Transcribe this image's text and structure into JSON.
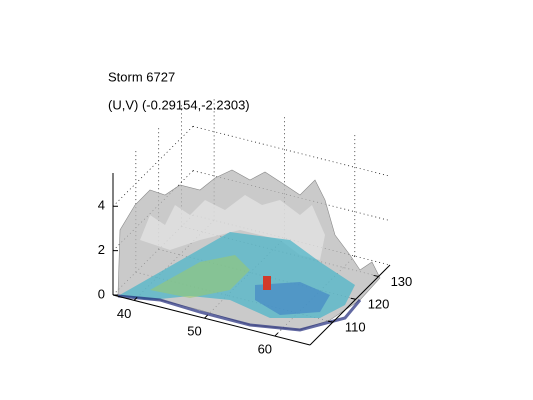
{
  "chart_data": {
    "type": "surface3d",
    "title": "Storm 6727",
    "subtitle": "(U,V) (-0.29154,-2.2303)",
    "xlim": [
      37,
      65
    ],
    "xticks": [
      40,
      50,
      60
    ],
    "ylim": [
      100,
      135
    ],
    "yticks": [
      110,
      120,
      130
    ],
    "zlim": [
      0,
      5.5
    ],
    "zticks": [
      0,
      2,
      4
    ],
    "grid": true
  }
}
